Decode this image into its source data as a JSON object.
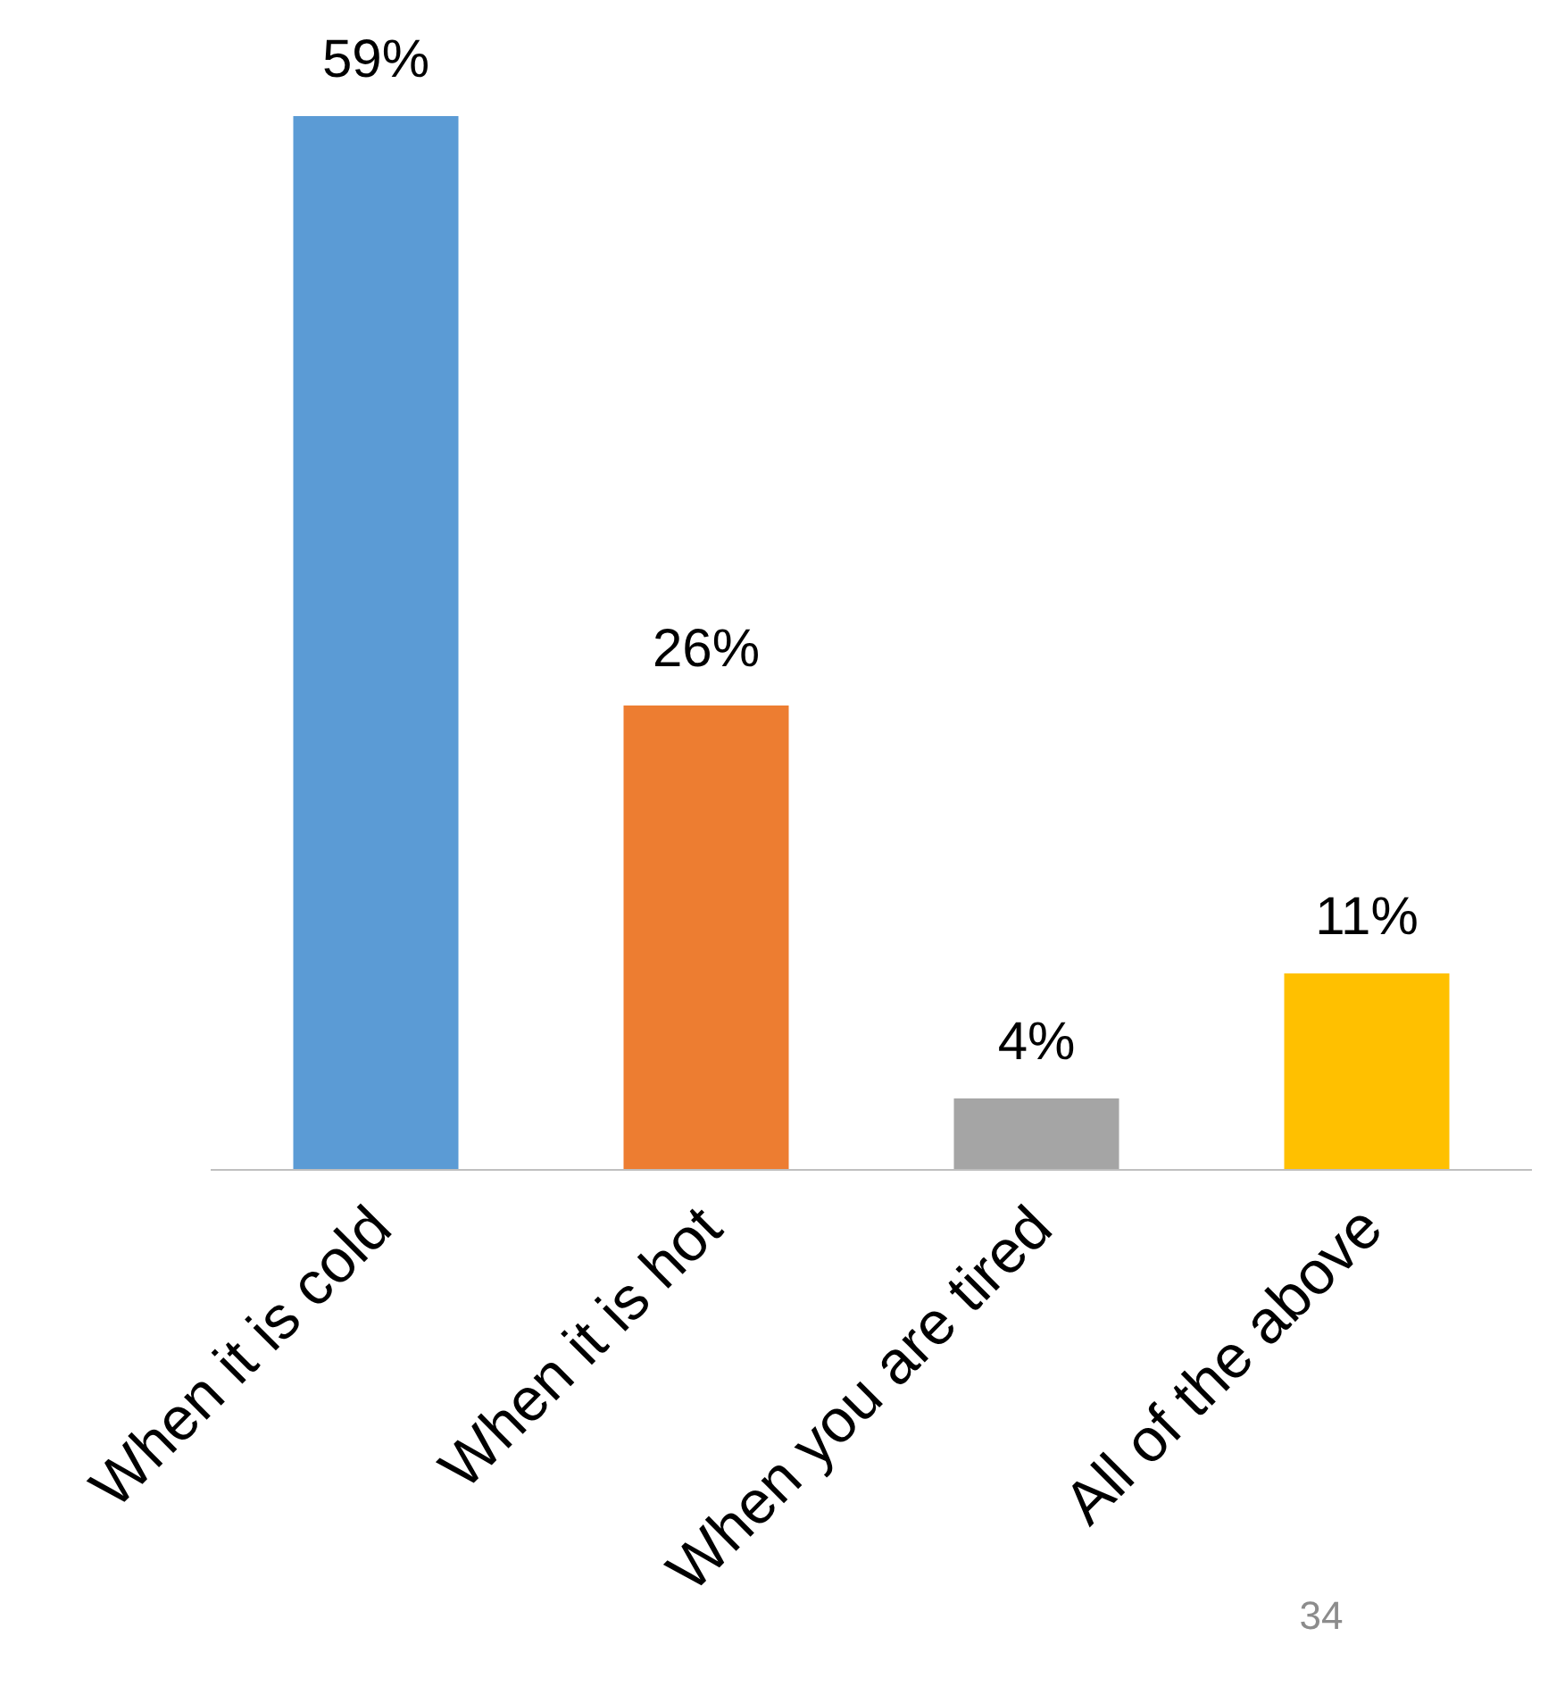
{
  "chart_data": {
    "type": "bar",
    "categories": [
      "When it is cold",
      "When it is hot",
      "When you are tired",
      "All of the above"
    ],
    "values": [
      59,
      26,
      4,
      11
    ],
    "colors": [
      "#5b9bd5",
      "#ed7d31",
      "#a5a5a5",
      "#ffc000"
    ],
    "value_labels": [
      "59%",
      "26%",
      "4%",
      "11%"
    ],
    "grid": false,
    "annotations": [
      "34"
    ]
  }
}
